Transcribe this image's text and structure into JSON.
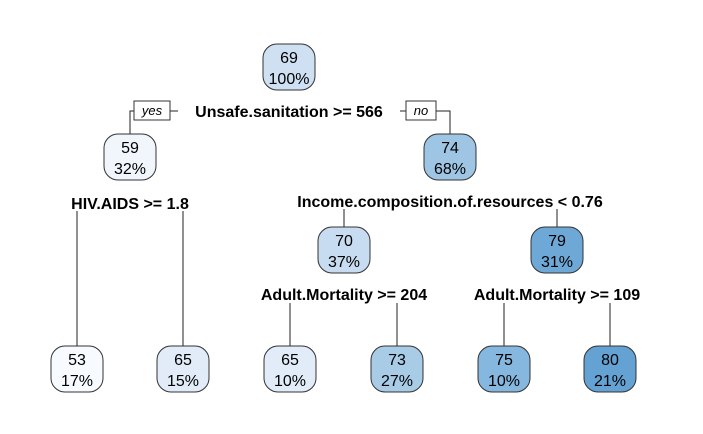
{
  "tree": {
    "branch_labels": {
      "left": "yes",
      "right": "no"
    },
    "nodes": [
      {
        "id": "root",
        "value": "69",
        "percent": "100%",
        "color": "#cfe0f2"
      },
      {
        "id": "n2",
        "value": "59",
        "percent": "32%",
        "color": "#f1f6fc"
      },
      {
        "id": "n3",
        "value": "74",
        "percent": "68%",
        "color": "#9ec5e3"
      },
      {
        "id": "n6",
        "value": "70",
        "percent": "37%",
        "color": "#c7dcf0"
      },
      {
        "id": "n7",
        "value": "79",
        "percent": "31%",
        "color": "#6ea8d6"
      },
      {
        "id": "l1",
        "value": "53",
        "percent": "17%",
        "color": "#f7fbff"
      },
      {
        "id": "l2",
        "value": "65",
        "percent": "15%",
        "color": "#e1ecf8"
      },
      {
        "id": "l3",
        "value": "65",
        "percent": "10%",
        "color": "#e1ecf8"
      },
      {
        "id": "l4",
        "value": "73",
        "percent": "27%",
        "color": "#a8cbe6"
      },
      {
        "id": "l5",
        "value": "75",
        "percent": "10%",
        "color": "#86b7de"
      },
      {
        "id": "l6",
        "value": "80",
        "percent": "21%",
        "color": "#64a2d3"
      }
    ],
    "splits": [
      {
        "id": "s-root",
        "label": "Unsafe.sanitation >= 566"
      },
      {
        "id": "s-n2",
        "label": "HIV.AIDS >= 1.8"
      },
      {
        "id": "s-n3",
        "label": "Income.composition.of.resources < 0.76"
      },
      {
        "id": "s-n6",
        "label": "Adult.Mortality >= 204"
      },
      {
        "id": "s-n7",
        "label": "Adult.Mortality >= 109"
      }
    ]
  }
}
